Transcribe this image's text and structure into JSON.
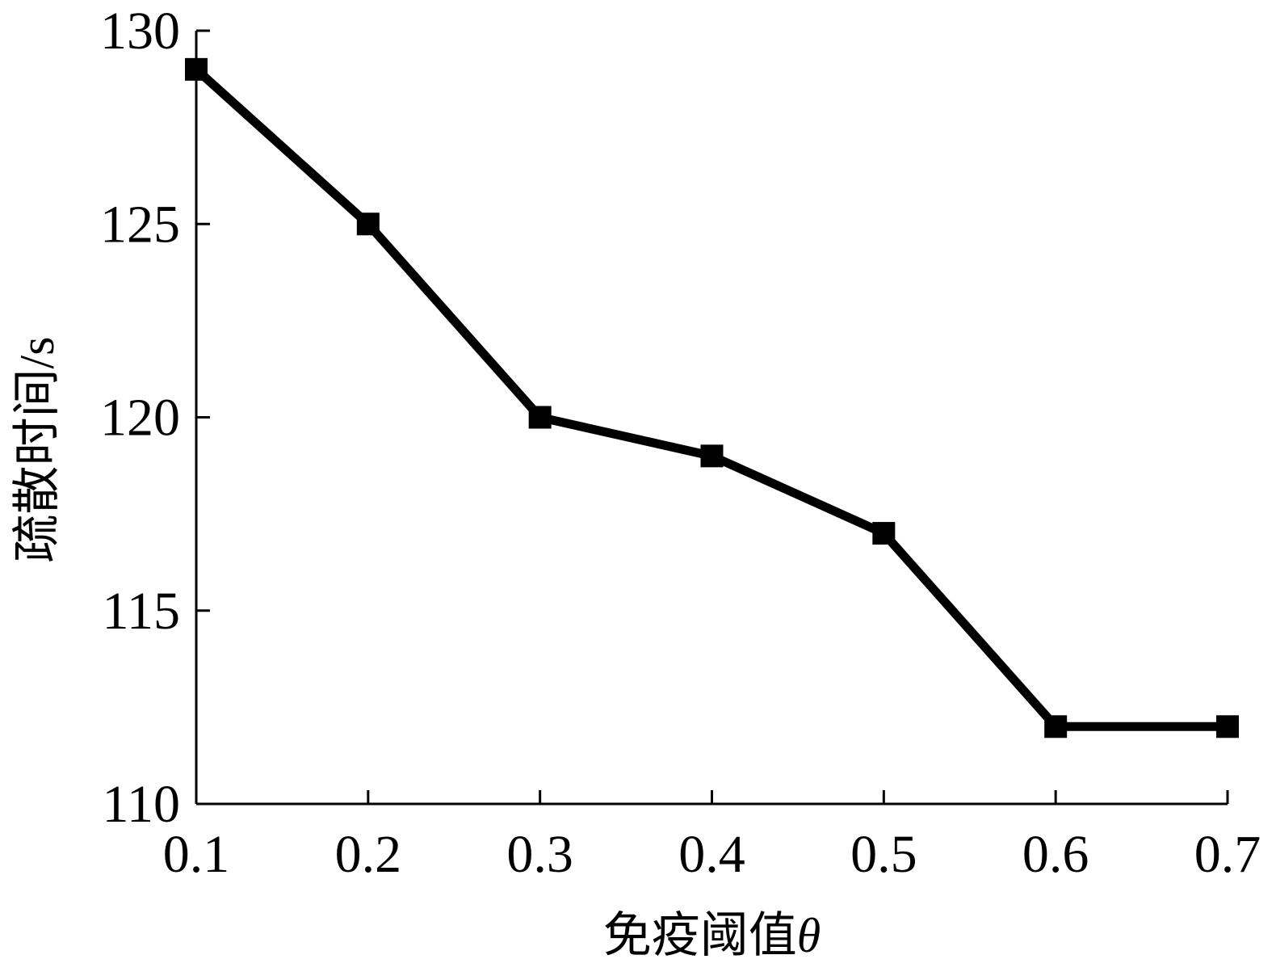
{
  "chart_data": {
    "type": "line",
    "title": "",
    "xlabel": "免疫阈值",
    "xlabel_symbol": "θ",
    "ylabel": "疏散时间/s",
    "x": [
      0.1,
      0.2,
      0.3,
      0.4,
      0.5,
      0.6,
      0.7
    ],
    "x_tick_labels": [
      "0.1",
      "0.2",
      "0.3",
      "0.4",
      "0.5",
      "0.6",
      "0.7"
    ],
    "y_ticks": [
      110,
      115,
      120,
      125,
      130
    ],
    "y_tick_labels": [
      "110",
      "115",
      "120",
      "125",
      "130"
    ],
    "xlim": [
      0.1,
      0.7
    ],
    "ylim": [
      110,
      130
    ],
    "grid": false,
    "legend": "none",
    "series": [
      {
        "values": [
          129,
          125,
          120,
          119,
          117,
          112,
          112
        ],
        "color": "#000000",
        "marker": "square"
      }
    ]
  }
}
